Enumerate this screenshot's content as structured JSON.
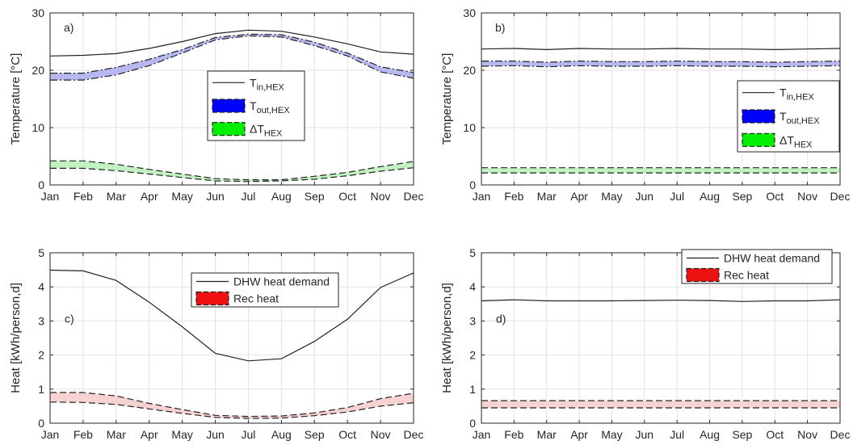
{
  "chart_data": [
    {
      "id": "a",
      "type": "line",
      "panel_label": "a)",
      "ylabel": "Temperature [°C]",
      "ylim": [
        0,
        30
      ],
      "yticks": [
        0,
        10,
        20,
        30
      ],
      "categories": [
        "Jan",
        "Feb",
        "Mar",
        "Apr",
        "May",
        "Jun",
        "Jul",
        "Aug",
        "Sep",
        "Oct",
        "Nov",
        "Dec"
      ],
      "grid": true,
      "legend_position": "middle-right",
      "series": [
        {
          "name": "T_in,HEX",
          "style": "solid",
          "values": [
            22.5,
            22.6,
            22.9,
            23.8,
            25.0,
            26.4,
            27.0,
            26.8,
            25.8,
            24.6,
            23.2,
            22.8
          ]
        },
        {
          "name": "T_out,HEX",
          "style": "band",
          "color": "#b8b8f0",
          "upper": [
            19.5,
            19.5,
            20.5,
            21.9,
            23.6,
            25.7,
            26.3,
            26.2,
            24.9,
            23.0,
            20.6,
            19.6
          ],
          "lower": [
            18.3,
            18.3,
            19.2,
            20.8,
            23.0,
            25.3,
            26.0,
            25.8,
            24.3,
            22.5,
            19.7,
            18.6
          ]
        },
        {
          "name": "ΔT_HEX",
          "style": "band",
          "color": "#c2f2c2",
          "upper": [
            4.2,
            4.2,
            3.6,
            2.7,
            1.9,
            1.1,
            0.9,
            0.9,
            1.5,
            2.2,
            3.2,
            4.1
          ],
          "lower": [
            2.9,
            2.9,
            2.5,
            1.9,
            1.3,
            0.7,
            0.6,
            0.7,
            1.0,
            1.6,
            2.4,
            3.0
          ]
        }
      ],
      "legend": [
        {
          "main": "T",
          "sub": "in,HEX",
          "swatch": "line"
        },
        {
          "main": "T",
          "sub": "out,HEX",
          "swatch": "#0000ff"
        },
        {
          "main": "ΔT",
          "sub": "HEX",
          "swatch": "#00ee00"
        }
      ]
    },
    {
      "id": "b",
      "type": "line",
      "panel_label": "b)",
      "ylabel": "Temperature [°C]",
      "ylim": [
        0,
        30
      ],
      "yticks": [
        0,
        10,
        20,
        30
      ],
      "categories": [
        "Jan",
        "Feb",
        "Mar",
        "Apr",
        "May",
        "Jun",
        "Jul",
        "Aug",
        "Sep",
        "Oct",
        "Nov",
        "Dec"
      ],
      "grid": true,
      "legend_position": "middle-right",
      "series": [
        {
          "name": "T_in,HEX",
          "style": "solid",
          "values": [
            23.7,
            23.8,
            23.6,
            23.8,
            23.7,
            23.7,
            23.8,
            23.7,
            23.7,
            23.6,
            23.7,
            23.8
          ]
        },
        {
          "name": "T_out,HEX",
          "style": "band",
          "color": "#b8b8f0",
          "upper": [
            21.6,
            21.6,
            21.4,
            21.6,
            21.5,
            21.5,
            21.6,
            21.5,
            21.5,
            21.4,
            21.5,
            21.6
          ],
          "lower": [
            20.7,
            20.8,
            20.6,
            20.8,
            20.7,
            20.7,
            20.8,
            20.7,
            20.7,
            20.6,
            20.7,
            20.8
          ]
        },
        {
          "name": "ΔT_HEX",
          "style": "band",
          "color": "#c2f2c2",
          "upper": [
            3.0,
            3.0,
            3.0,
            3.0,
            3.0,
            3.0,
            3.0,
            3.0,
            3.0,
            3.0,
            3.0,
            3.0
          ],
          "lower": [
            2.1,
            2.1,
            2.1,
            2.1,
            2.1,
            2.1,
            2.1,
            2.1,
            2.1,
            2.1,
            2.1,
            2.1
          ]
        }
      ],
      "legend": [
        {
          "main": "T",
          "sub": "in,HEX",
          "swatch": "line"
        },
        {
          "main": "T",
          "sub": "out,HEX",
          "swatch": "#0000ff"
        },
        {
          "main": "ΔT",
          "sub": "HEX",
          "swatch": "#00ee00"
        }
      ]
    },
    {
      "id": "c",
      "type": "line",
      "panel_label": "c)",
      "ylabel": "Heat [kWh/person,d]",
      "ylim": [
        0,
        5
      ],
      "yticks": [
        0,
        1,
        2,
        3,
        4,
        5
      ],
      "categories": [
        "Jan",
        "Feb",
        "Mar",
        "Apr",
        "May",
        "Jun",
        "Jul",
        "Aug",
        "Sep",
        "Oct",
        "Nov",
        "Dec"
      ],
      "grid": true,
      "legend_position": "top-right",
      "series": [
        {
          "name": "DHW heat demand",
          "style": "solid",
          "values": [
            4.49,
            4.47,
            4.19,
            3.55,
            2.83,
            2.05,
            1.83,
            1.89,
            2.4,
            3.05,
            3.98,
            4.41
          ]
        },
        {
          "name": "Rec heat",
          "style": "band",
          "color": "#f7d2d2",
          "upper": [
            0.9,
            0.9,
            0.8,
            0.58,
            0.4,
            0.23,
            0.2,
            0.21,
            0.3,
            0.46,
            0.72,
            0.88
          ],
          "lower": [
            0.62,
            0.61,
            0.55,
            0.42,
            0.29,
            0.17,
            0.14,
            0.15,
            0.22,
            0.33,
            0.5,
            0.6
          ]
        }
      ],
      "legend": [
        {
          "main": "DHW heat demand",
          "sub": "",
          "swatch": "line"
        },
        {
          "main": "Rec heat",
          "sub": "",
          "swatch": "#ee1111"
        }
      ]
    },
    {
      "id": "d",
      "type": "line",
      "panel_label": "d)",
      "ylabel": "Heat [kWh/person,d]",
      "ylim": [
        0,
        5
      ],
      "yticks": [
        0,
        1,
        2,
        3,
        4,
        5
      ],
      "categories": [
        "Jan",
        "Feb",
        "Mar",
        "Apr",
        "May",
        "Jun",
        "Jul",
        "Aug",
        "Sep",
        "Oct",
        "Nov",
        "Dec"
      ],
      "grid": true,
      "legend_position": "top-right",
      "series": [
        {
          "name": "DHW heat demand",
          "style": "solid",
          "values": [
            3.59,
            3.62,
            3.59,
            3.59,
            3.59,
            3.6,
            3.61,
            3.6,
            3.57,
            3.59,
            3.59,
            3.62
          ]
        },
        {
          "name": "Rec heat",
          "style": "band",
          "color": "#f7d2d2",
          "upper": [
            0.66,
            0.66,
            0.66,
            0.66,
            0.66,
            0.66,
            0.66,
            0.66,
            0.66,
            0.66,
            0.66,
            0.66
          ],
          "lower": [
            0.45,
            0.45,
            0.45,
            0.45,
            0.45,
            0.45,
            0.45,
            0.45,
            0.45,
            0.45,
            0.45,
            0.45
          ]
        }
      ],
      "legend": [
        {
          "main": "DHW heat demand",
          "sub": "",
          "swatch": "line"
        },
        {
          "main": "Rec heat",
          "sub": "",
          "swatch": "#ee1111"
        }
      ]
    }
  ]
}
